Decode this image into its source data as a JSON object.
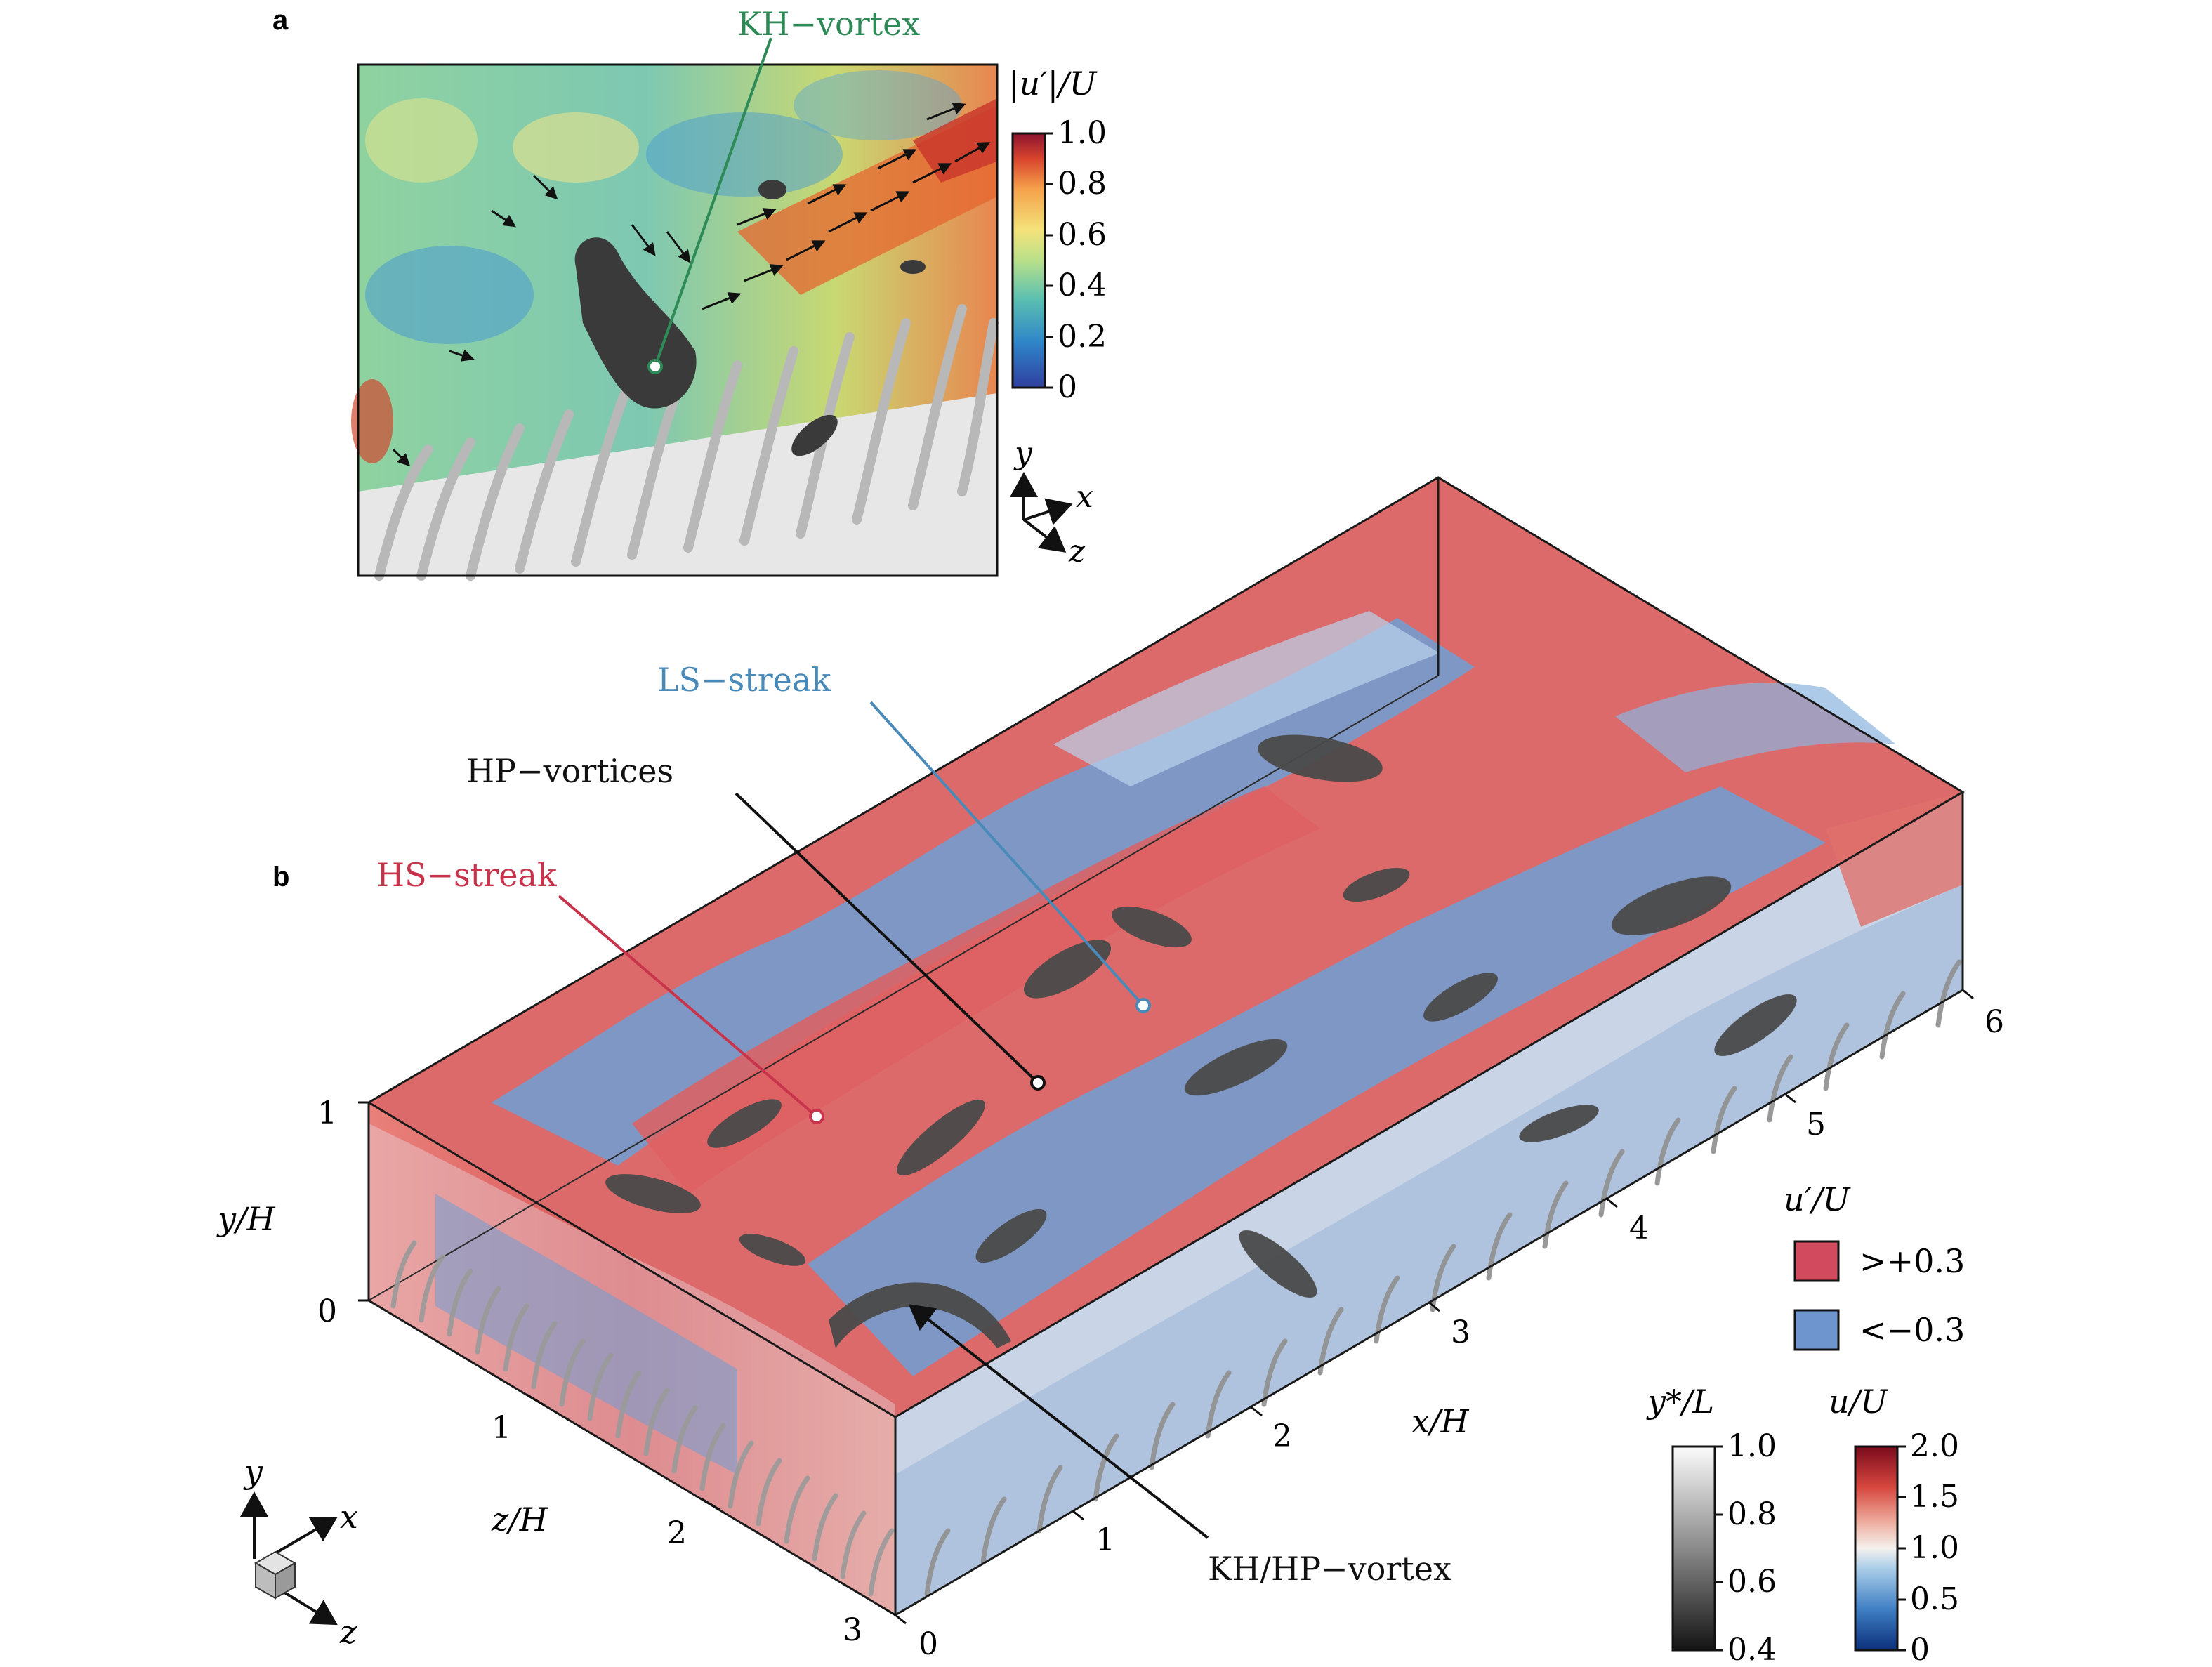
{
  "panel_a": {
    "letter": "a",
    "callout": "KH−vortex",
    "colorbar": {
      "label": "|u′|/U",
      "ticks": [
        "1.0",
        "0.8",
        "0.6",
        "0.4",
        "0.2",
        "0"
      ],
      "colors": [
        "#2f3fa0",
        "#2f86c9",
        "#5cc0b0",
        "#b9e08a",
        "#f4e27a",
        "#f5a24b",
        "#d9442d",
        "#8c1330"
      ]
    },
    "axes": {
      "y": "y",
      "x": "x",
      "z": "z"
    }
  },
  "panel_b": {
    "letter": "b",
    "callouts": {
      "ls_streak": "LS−streak",
      "hp_vortices": "HP−vortices",
      "hs_streak": "HS−streak",
      "kh_hp_vortex": "KH/HP−vortex"
    },
    "callout_colors": {
      "ls": "#4a8ab8",
      "hp": "#111111",
      "hs": "#c8344b",
      "kh": "#2e8b57"
    },
    "y_axis": {
      "label": "y/H",
      "ticks": [
        "1",
        "0"
      ]
    },
    "z_axis": {
      "label": "z/H",
      "ticks": [
        "1",
        "2",
        "3"
      ]
    },
    "x_axis": {
      "label": "x/H",
      "ticks": [
        "0",
        "1",
        "2",
        "3",
        "4",
        "5",
        "6"
      ]
    },
    "legend": {
      "title": "u′/U",
      "items": [
        {
          "label": ">+0.3",
          "color": "#d24a5e"
        },
        {
          "label": "<−0.3",
          "color": "#6f95cf"
        }
      ]
    },
    "colorbar_gray": {
      "label": "y*/L",
      "ticks": [
        "1.0",
        "0.8",
        "0.6",
        "0.4"
      ]
    },
    "colorbar_u": {
      "label": "u/U",
      "ticks": [
        "2.0",
        "1.5",
        "1.0",
        "0.5",
        "0"
      ],
      "colors": [
        "#0b2f7a",
        "#3f7fc4",
        "#a9cde8",
        "#f4f1ee",
        "#efb2a4",
        "#d7473f",
        "#7a0a1c"
      ]
    },
    "triad": {
      "y": "y",
      "x": "x",
      "z": "z"
    }
  }
}
